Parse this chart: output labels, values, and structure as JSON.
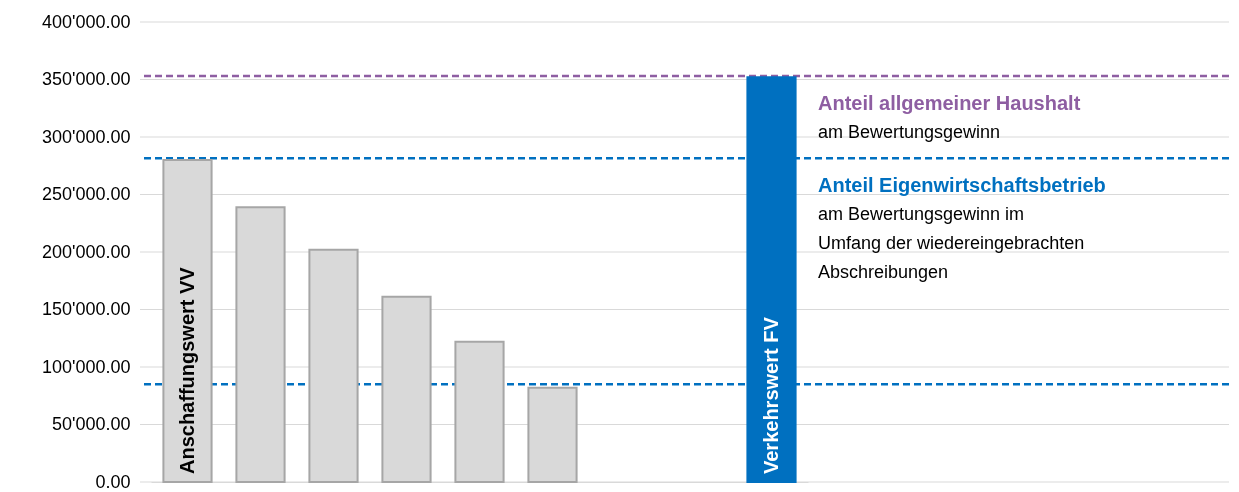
{
  "chart_data": {
    "type": "bar",
    "categories": [
      "Anschaffungswert VV",
      null,
      null,
      null,
      null,
      null,
      null,
      null,
      "Verkehrswert FV"
    ],
    "values": [
      280000,
      239000,
      202000,
      161000,
      122000,
      82000,
      null,
      null,
      352000
    ],
    "colors": [
      "#d9d9d9",
      "#d9d9d9",
      "#d9d9d9",
      "#d9d9d9",
      "#d9d9d9",
      "#d9d9d9",
      null,
      null,
      "#0070c0"
    ],
    "ylim": [
      0,
      400000
    ],
    "yticks": [
      {
        "value": 0,
        "label": "0.00"
      },
      {
        "value": 50000,
        "label": "50'000.00"
      },
      {
        "value": 100000,
        "label": "100'000.00"
      },
      {
        "value": 150000,
        "label": "150'000.00"
      },
      {
        "value": 200000,
        "label": "200'000.00"
      },
      {
        "value": 250000,
        "label": "250'000.00"
      },
      {
        "value": 300000,
        "label": "300'000.00"
      },
      {
        "value": 350000,
        "label": "350'000.00"
      },
      {
        "value": 400000,
        "label": "400'000.00"
      }
    ],
    "ref_lines": [
      {
        "axis": "y",
        "value": 353000,
        "label": "Anteil allgemeiner Haushalt",
        "color": "#8e5ea2",
        "line_style": "dashed"
      },
      {
        "axis": "y",
        "value": 281500,
        "label": "Anteil Eigenwirtschaftsbetrieb",
        "color": "#0070c0",
        "line_style": "dashed"
      },
      {
        "axis": "y",
        "value": 85000,
        "color": "#0070c0",
        "line_style": "dashed"
      }
    ],
    "annotations": [
      "am Bewertungsgewinn",
      "am Bewertungsgewinn im\nUmfang der wiedereingebrachten\nAbschreibungen"
    ],
    "grid": "y"
  }
}
